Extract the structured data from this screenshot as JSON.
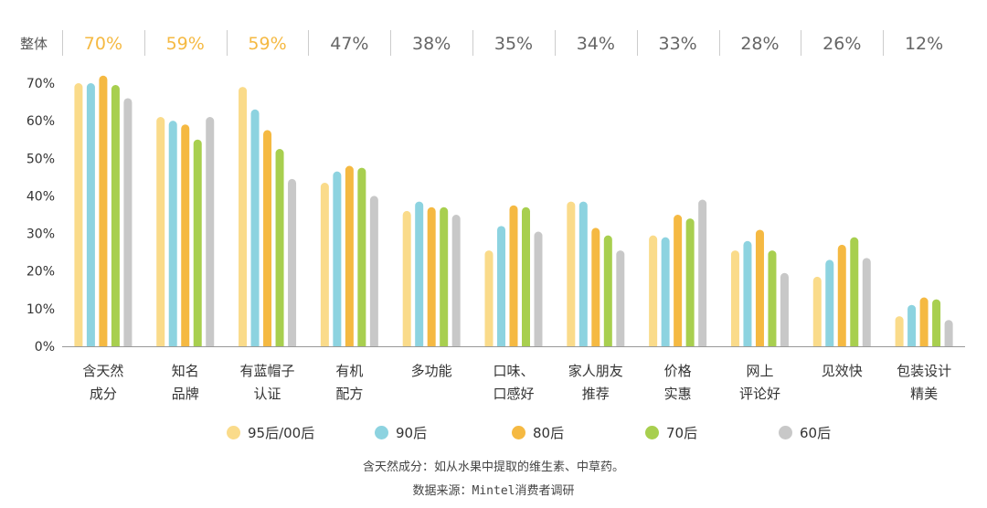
{
  "overall": {
    "label": "整体",
    "values": [
      "70%",
      "59%",
      "59%",
      "47%",
      "38%",
      "35%",
      "34%",
      "33%",
      "28%",
      "26%",
      "12%"
    ],
    "highlight_color": "#F5B942",
    "normal_color": "#666666",
    "highlight_count": 3
  },
  "chart_data": {
    "type": "bar",
    "categories": [
      [
        "含天然",
        "成分"
      ],
      [
        "知名",
        "品牌"
      ],
      [
        "有蓝帽子",
        "认证"
      ],
      [
        "有机",
        "配方"
      ],
      [
        "多功能"
      ],
      [
        "口味、",
        "口感好"
      ],
      [
        "家人朋友",
        "推荐"
      ],
      [
        "价格",
        "实惠"
      ],
      [
        "网上",
        "评论好"
      ],
      [
        "见效快"
      ],
      [
        "包装设计",
        "精美"
      ]
    ],
    "series": [
      {
        "name": "95后/00后",
        "color": "#FADB8A",
        "values": [
          70,
          61,
          69,
          43.5,
          36,
          25.5,
          38.5,
          29.5,
          25.5,
          18.5,
          8
        ]
      },
      {
        "name": "90后",
        "color": "#8DD3E0",
        "values": [
          70,
          60,
          63,
          46.5,
          38.5,
          32,
          38.5,
          29,
          28,
          23,
          11
        ]
      },
      {
        "name": "80后",
        "color": "#F5B942",
        "values": [
          72,
          59,
          57.5,
          48,
          37,
          37.5,
          31.5,
          35,
          31,
          27,
          13
        ]
      },
      {
        "name": "70后",
        "color": "#A8CF4F",
        "values": [
          69.5,
          55,
          52.5,
          47.5,
          37,
          37,
          29.5,
          34,
          25.5,
          29,
          12.5
        ]
      },
      {
        "name": "60后",
        "color": "#C8C8C8",
        "values": [
          66,
          61,
          44.5,
          40,
          35,
          30.5,
          25.5,
          39,
          19.5,
          23.5,
          7
        ]
      }
    ],
    "yticks": [
      "0%",
      "10%",
      "20%",
      "30%",
      "40%",
      "50%",
      "60%",
      "70%"
    ],
    "ylim": [
      0,
      75
    ]
  },
  "footnotes": {
    "note": "含天然成分：如从水果中提取的维生素、中草药。",
    "source": "数据来源：Mintel消费者调研"
  }
}
